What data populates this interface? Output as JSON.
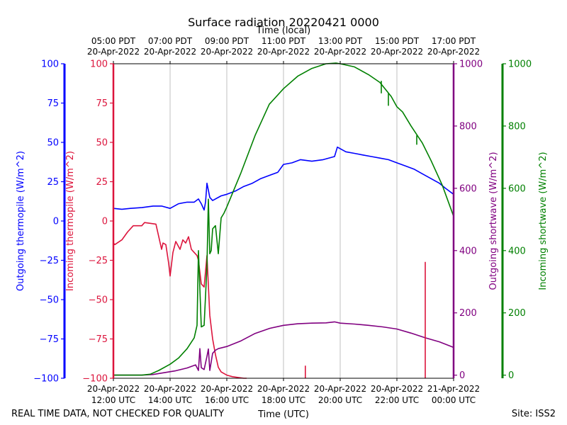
{
  "chart_data": {
    "type": "line",
    "title": "Surface radiation 20220421 0000",
    "x_top_label": "Time (local)",
    "x_bottom_label": "Time (UTC)",
    "footer_left": "REAL TIME DATA, NOT CHECKED FOR QUALITY",
    "footer_right": "Site: ISS2",
    "xlim": [
      12,
      24
    ],
    "top_ticks": [
      {
        "x": 12,
        "line1": "05:00 PDT",
        "line2": "20-Apr-2022"
      },
      {
        "x": 14,
        "line1": "07:00 PDT",
        "line2": "20-Apr-2022"
      },
      {
        "x": 16,
        "line1": "09:00 PDT",
        "line2": "20-Apr-2022"
      },
      {
        "x": 18,
        "line1": "11:00 PDT",
        "line2": "20-Apr-2022"
      },
      {
        "x": 20,
        "line1": "13:00 PDT",
        "line2": "20-Apr-2022"
      },
      {
        "x": 22,
        "line1": "15:00 PDT",
        "line2": "20-Apr-2022"
      },
      {
        "x": 24,
        "line1": "17:00 PDT",
        "line2": "20-Apr-2022"
      }
    ],
    "bottom_ticks": [
      {
        "x": 12,
        "line1": "20-Apr-2022",
        "line2": "12:00 UTC"
      },
      {
        "x": 14,
        "line1": "20-Apr-2022",
        "line2": "14:00 UTC"
      },
      {
        "x": 16,
        "line1": "20-Apr-2022",
        "line2": "16:00 UTC"
      },
      {
        "x": 18,
        "line1": "20-Apr-2022",
        "line2": "18:00 UTC"
      },
      {
        "x": 20,
        "line1": "20-Apr-2022",
        "line2": "20:00 UTC"
      },
      {
        "x": 22,
        "line1": "20-Apr-2022",
        "line2": "22:00 UTC"
      },
      {
        "x": 24,
        "line1": "21-Apr-2022",
        "line2": "00:00 UTC"
      }
    ],
    "axes": [
      {
        "id": "out_thermo",
        "label": "Outgoing thermopile (W/m^2)",
        "color": "#0000ff",
        "ylim": [
          -100,
          100
        ],
        "ticks": [
          -100,
          -75,
          -50,
          -25,
          0,
          25,
          50,
          75,
          100
        ],
        "side": "left-outer"
      },
      {
        "id": "in_thermo",
        "label": "Incoming thermopile (W/m^2)",
        "color": "#dc143c",
        "ylim": [
          -100,
          100
        ],
        "ticks": [
          -100,
          -75,
          -50,
          -25,
          0,
          25,
          50,
          75,
          100
        ],
        "side": "left-inner"
      },
      {
        "id": "out_sw",
        "label": "Outgoing shortwave (W/m^2)",
        "color": "#800080",
        "ylim": [
          -10,
          1000
        ],
        "ticks": [
          0,
          200,
          400,
          600,
          800,
          1000
        ],
        "side": "right-inner"
      },
      {
        "id": "in_sw",
        "label": "Incoming shortwave (W/m^2)",
        "color": "#008000",
        "ylim": [
          -10,
          1000
        ],
        "ticks": [
          0,
          200,
          400,
          600,
          800,
          1000
        ],
        "side": "right-outer"
      }
    ],
    "series": [
      {
        "name": "Outgoing thermopile",
        "axis": "out_thermo",
        "color": "#0000ff",
        "x": [
          12.0,
          12.3,
          12.6,
          13.0,
          13.4,
          13.7,
          14.0,
          14.3,
          14.6,
          14.85,
          15.0,
          15.1,
          15.2,
          15.25,
          15.3,
          15.4,
          15.5,
          15.8,
          16.0,
          16.3,
          16.6,
          16.9,
          17.2,
          17.5,
          17.8,
          18.0,
          18.3,
          18.6,
          19.0,
          19.4,
          19.8,
          19.9,
          20.2,
          20.5,
          20.8,
          21.1,
          21.4,
          21.7,
          22.0,
          22.3,
          22.6,
          22.9,
          23.2,
          23.5,
          23.7,
          24.0
        ],
        "y": [
          8,
          7.5,
          8,
          8.5,
          9.5,
          9.5,
          8,
          11,
          12,
          12,
          14,
          11,
          7,
          12,
          24,
          15,
          13,
          16,
          17,
          19,
          22,
          24,
          27,
          29,
          31,
          36,
          37,
          39,
          38,
          39,
          41,
          47,
          44,
          43,
          42,
          41,
          40,
          39,
          37,
          35,
          33,
          30,
          27,
          24,
          21,
          17
        ]
      },
      {
        "name": "Incoming thermopile",
        "axis": "in_thermo",
        "color": "#dc143c",
        "x": [
          12.0,
          12.05,
          12.3,
          12.5,
          12.7,
          13.0,
          13.1,
          13.5,
          13.6,
          13.7,
          13.75,
          13.85,
          13.95,
          14.0,
          14.1,
          14.2,
          14.35,
          14.45,
          14.55,
          14.65,
          14.75,
          14.85,
          14.95,
          15.0,
          15.1,
          15.2,
          15.3,
          15.4,
          15.5,
          15.6,
          15.7,
          15.8,
          16.0,
          16.2,
          16.4,
          16.6,
          16.7
        ],
        "y": [
          -14,
          -15,
          -12,
          -7,
          -3,
          -3,
          -1,
          -2,
          -10,
          -18,
          -14,
          -15,
          -27,
          -35,
          -20,
          -13,
          -18,
          -12,
          -14,
          -10,
          -18,
          -20,
          -22,
          -25,
          -40,
          -42,
          -22,
          -60,
          -75,
          -85,
          -93,
          -96,
          -98,
          -99,
          -99.5,
          -100,
          -100
        ]
      },
      {
        "name": "Outgoing shortwave",
        "axis": "out_sw",
        "color": "#800080",
        "x": [
          12.0,
          12.5,
          13.0,
          13.4,
          13.8,
          14.2,
          14.6,
          14.9,
          15.0,
          15.05,
          15.1,
          15.2,
          15.3,
          15.35,
          15.4,
          15.5,
          15.6,
          15.7,
          16.0,
          16.5,
          17.0,
          17.5,
          18.0,
          18.5,
          19.0,
          19.5,
          19.8,
          20.0,
          20.5,
          21.0,
          21.5,
          22.0,
          22.5,
          23.0,
          23.5,
          24.0
        ],
        "y": [
          0,
          0,
          0,
          2,
          8,
          14,
          23,
          33,
          15,
          85,
          24,
          18,
          60,
          84,
          15,
          70,
          80,
          85,
          92,
          110,
          134,
          150,
          160,
          165,
          167,
          168,
          171,
          167,
          164,
          160,
          155,
          148,
          135,
          120,
          107,
          89
        ]
      },
      {
        "name": "Incoming shortwave",
        "axis": "in_sw",
        "color": "#008000",
        "x": [
          12.0,
          12.5,
          13.0,
          13.3,
          13.6,
          14.0,
          14.3,
          14.6,
          14.85,
          14.95,
          15.0,
          15.1,
          15.2,
          15.3,
          15.35,
          15.4,
          15.45,
          15.5,
          15.6,
          15.7,
          15.8,
          15.9,
          16.0,
          16.5,
          17.0,
          17.5,
          18.0,
          18.5,
          19.0,
          19.5,
          19.85,
          20.0,
          20.5,
          21.0,
          21.4,
          21.8,
          22.0,
          22.2,
          22.5,
          22.9,
          23.2,
          23.6,
          24.0
        ],
        "y": [
          0,
          0,
          0,
          3,
          15,
          35,
          55,
          85,
          120,
          160,
          400,
          155,
          160,
          350,
          565,
          390,
          400,
          470,
          480,
          390,
          505,
          520,
          540,
          650,
          770,
          870,
          920,
          960,
          985,
          1000,
          1002,
          1000,
          990,
          965,
          940,
          895,
          862,
          845,
          800,
          745,
          690,
          610,
          510
        ]
      }
    ],
    "spikes": [
      {
        "name": "Incoming thermopile spike",
        "axis": "in_thermo",
        "color": "#dc143c",
        "x": 18.77,
        "from": -100,
        "to": -92
      },
      {
        "name": "Incoming thermopile spike",
        "axis": "in_thermo",
        "color": "#dc143c",
        "x": 23.0,
        "from": -100,
        "to": -26
      },
      {
        "name": "Incoming shortwave dip",
        "axis": "in_sw",
        "color": "#008000",
        "x": 21.45,
        "from": 945,
        "to": 905
      },
      {
        "name": "Incoming shortwave dip",
        "axis": "in_sw",
        "color": "#008000",
        "x": 21.7,
        "from": 905,
        "to": 865
      },
      {
        "name": "Incoming shortwave dip",
        "axis": "in_sw",
        "color": "#008000",
        "x": 22.7,
        "from": 770,
        "to": 740
      }
    ]
  }
}
